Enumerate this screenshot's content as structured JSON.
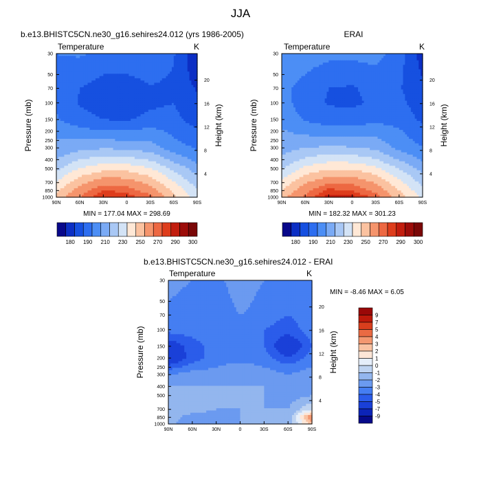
{
  "main_title": "JJA",
  "colors": {
    "abs_bar": [
      "#08088a",
      "#0c2fc4",
      "#1650e0",
      "#2d6ef0",
      "#4c8ef5",
      "#7aaaf5",
      "#a9c8f5",
      "#d3e3f6",
      "#ffe8d6",
      "#fbc2a0",
      "#f5946c",
      "#ed6842",
      "#de3d1c",
      "#c21d0e",
      "#9c0c09",
      "#7a0707"
    ],
    "diff_bar": [
      "#060a8a",
      "#0c24b8",
      "#1a40d8",
      "#2b5cea",
      "#457ef2",
      "#6b9af0",
      "#93b6ee",
      "#bed3f1",
      "#e5eefa",
      "#fde6d7",
      "#f9c2a2",
      "#f39770",
      "#ea6a43",
      "#d93e1d",
      "#bd190b",
      "#9a0808"
    ]
  },
  "chart_data": [
    {
      "type": "heatmap",
      "title": "b.e13.BHISTC5CN.ne30_g16.sehires24.012 (yrs 1986-2005)",
      "subtitle_left": "Temperature",
      "subtitle_right": "K",
      "ylabel": "Pressure (mb)",
      "ylabel_right": "Height (km)",
      "x_ticks": [
        "90N",
        "60N",
        "30N",
        "0",
        "30S",
        "60S",
        "90S"
      ],
      "x_tick_values": [
        90,
        60,
        30,
        0,
        -30,
        -60,
        -90
      ],
      "y_ticks": [
        "30",
        "50",
        "70",
        "100",
        "150",
        "200",
        "250",
        "300",
        "400",
        "500",
        "700",
        "850",
        "1000"
      ],
      "y_tick_values": [
        30,
        50,
        70,
        100,
        150,
        200,
        250,
        300,
        400,
        500,
        700,
        850,
        1000
      ],
      "height_ticks": [
        "20",
        "16",
        "12",
        "8",
        "4"
      ],
      "height_tick_values": [
        20,
        16,
        12,
        8,
        4
      ],
      "min_max": "MIN = 177.04  MAX = 298.69",
      "colorbar_labels": [
        "180",
        "190",
        "210",
        "230",
        "250",
        "270",
        "290",
        "300"
      ],
      "field": {
        "lat": [
          90,
          60,
          30,
          0,
          -30,
          -60,
          -90
        ],
        "lev": [
          30,
          50,
          70,
          100,
          150,
          200,
          250,
          300,
          400,
          500,
          700,
          850,
          1000
        ],
        "values": [
          [
            215,
            216,
            213,
            213,
            215,
            206,
            186
          ],
          [
            214,
            210,
            205,
            205,
            208,
            204,
            190
          ],
          [
            214,
            205,
            200,
            199,
            204,
            203,
            194
          ],
          [
            214,
            204,
            199,
            198,
            203,
            205,
            196
          ],
          [
            216,
            209,
            205,
            204,
            208,
            208,
            200
          ],
          [
            222,
            218,
            216,
            216,
            218,
            213,
            206
          ],
          [
            226,
            226,
            226,
            225,
            224,
            216,
            210
          ],
          [
            228,
            232,
            234,
            233,
            230,
            220,
            214
          ],
          [
            235,
            245,
            250,
            249,
            244,
            232,
            222
          ],
          [
            243,
            256,
            262,
            262,
            256,
            243,
            230
          ],
          [
            256,
            272,
            282,
            281,
            272,
            256,
            240
          ],
          [
            263,
            280,
            292,
            290,
            280,
            263,
            246
          ],
          [
            270,
            285,
            298,
            296,
            288,
            268,
            250
          ]
        ]
      }
    },
    {
      "type": "heatmap",
      "title": "ERAI",
      "subtitle_left": "Temperature",
      "subtitle_right": "K",
      "ylabel": "Pressure (mb)",
      "ylabel_right": "Height (km)",
      "x_ticks": [
        "90N",
        "60N",
        "30N",
        "0",
        "30S",
        "60S",
        "90S"
      ],
      "x_tick_values": [
        90,
        60,
        30,
        0,
        -30,
        -60,
        -90
      ],
      "y_ticks": [
        "30",
        "50",
        "70",
        "100",
        "150",
        "200",
        "250",
        "300",
        "400",
        "500",
        "700",
        "850",
        "1000"
      ],
      "y_tick_values": [
        30,
        50,
        70,
        100,
        150,
        200,
        250,
        300,
        400,
        500,
        700,
        850,
        1000
      ],
      "height_ticks": [
        "20",
        "16",
        "12",
        "8",
        "4"
      ],
      "height_tick_values": [
        20,
        16,
        12,
        8,
        4
      ],
      "min_max": "MIN = 182.32  MAX = 301.23",
      "colorbar_labels": [
        "180",
        "190",
        "210",
        "230",
        "250",
        "270",
        "290",
        "300"
      ],
      "field": {
        "lat": [
          90,
          60,
          30,
          0,
          -30,
          -60,
          -90
        ],
        "lev": [
          30,
          50,
          70,
          100,
          150,
          200,
          250,
          300,
          400,
          500,
          700,
          850,
          1000
        ],
        "values": [
          [
            220,
            220,
            218,
            218,
            219,
            210,
            190
          ],
          [
            219,
            215,
            210,
            209,
            212,
            207,
            194
          ],
          [
            218,
            211,
            205,
            204,
            208,
            206,
            197
          ],
          [
            219,
            210,
            204,
            203,
            207,
            208,
            199
          ],
          [
            221,
            214,
            210,
            209,
            212,
            211,
            203
          ],
          [
            226,
            222,
            220,
            220,
            222,
            216,
            209
          ],
          [
            229,
            229,
            229,
            228,
            227,
            219,
            212
          ],
          [
            231,
            235,
            237,
            236,
            233,
            222,
            216
          ],
          [
            237,
            247,
            252,
            251,
            246,
            234,
            224
          ],
          [
            245,
            258,
            264,
            264,
            258,
            245,
            232
          ],
          [
            258,
            274,
            284,
            283,
            274,
            258,
            242
          ],
          [
            265,
            282,
            294,
            292,
            282,
            265,
            248
          ],
          [
            272,
            287,
            300,
            299,
            290,
            270,
            252
          ]
        ]
      }
    },
    {
      "type": "heatmap",
      "title": "b.e13.BHISTC5CN.ne30_g16.sehires24.012 - ERAI",
      "subtitle_left": "Temperature",
      "subtitle_right": "K",
      "ylabel": "Pressure (mb)",
      "ylabel_right": "Height (km)",
      "x_ticks": [
        "90N",
        "60N",
        "30N",
        "0",
        "30S",
        "60S",
        "90S"
      ],
      "x_tick_values": [
        90,
        60,
        30,
        0,
        -30,
        -60,
        -90
      ],
      "y_ticks": [
        "30",
        "50",
        "70",
        "100",
        "150",
        "200",
        "250",
        "300",
        "400",
        "500",
        "700",
        "850",
        "1000"
      ],
      "y_tick_values": [
        30,
        50,
        70,
        100,
        150,
        200,
        250,
        300,
        400,
        500,
        700,
        850,
        1000
      ],
      "height_ticks": [
        "20",
        "16",
        "12",
        "8",
        "4"
      ],
      "height_tick_values": [
        20,
        16,
        12,
        8,
        4
      ],
      "min_max": "MIN = -8.46  MAX =   6.05",
      "colorbar_labels": [
        "9",
        "7",
        "5",
        "4",
        "3",
        "2",
        "1",
        "0",
        "-1",
        "-2",
        "-3",
        "-4",
        "-5",
        "-7",
        "-9"
      ],
      "field": {
        "lat": [
          90,
          60,
          30,
          0,
          -30,
          -60,
          -90
        ],
        "lev": [
          30,
          50,
          70,
          100,
          150,
          200,
          250,
          300,
          400,
          500,
          700,
          850,
          1000
        ],
        "values": [
          [
            -2.0,
            -2.5,
            -3.0,
            -1.5,
            -2.5,
            -2.5,
            -3.0
          ],
          [
            -2.5,
            -3.0,
            -3.5,
            -2.0,
            -3.0,
            -3.0,
            -3.0
          ],
          [
            -2.5,
            -3.0,
            -3.5,
            -2.5,
            -3.0,
            -3.5,
            -3.0
          ],
          [
            -3.0,
            -3.0,
            -3.0,
            -2.5,
            -3.5,
            -4.0,
            -3.0
          ],
          [
            -5.5,
            -4.0,
            -3.0,
            -3.0,
            -3.5,
            -6.0,
            -3.5
          ],
          [
            -6.0,
            -4.0,
            -3.0,
            -3.0,
            -3.0,
            -4.5,
            -3.0
          ],
          [
            -4.0,
            -3.0,
            -2.5,
            -2.0,
            -2.5,
            -3.0,
            -2.5
          ],
          [
            -2.5,
            -2.0,
            -2.0,
            -1.5,
            -2.0,
            -2.5,
            -2.0
          ],
          [
            -1.5,
            -1.5,
            -1.5,
            -1.5,
            -1.5,
            -2.0,
            -1.5
          ],
          [
            -1.0,
            -1.0,
            -1.5,
            -1.5,
            -1.5,
            -2.0,
            -1.5
          ],
          [
            -1.0,
            -1.0,
            -1.5,
            -1.5,
            -1.5,
            -1.5,
            0.5
          ],
          [
            -1.0,
            -2.0,
            -2.0,
            -1.5,
            -1.5,
            -1.5,
            5.0
          ],
          [
            -1.0,
            -2.5,
            -2.5,
            -1.5,
            -1.5,
            -1.5,
            3.0
          ]
        ]
      }
    }
  ]
}
